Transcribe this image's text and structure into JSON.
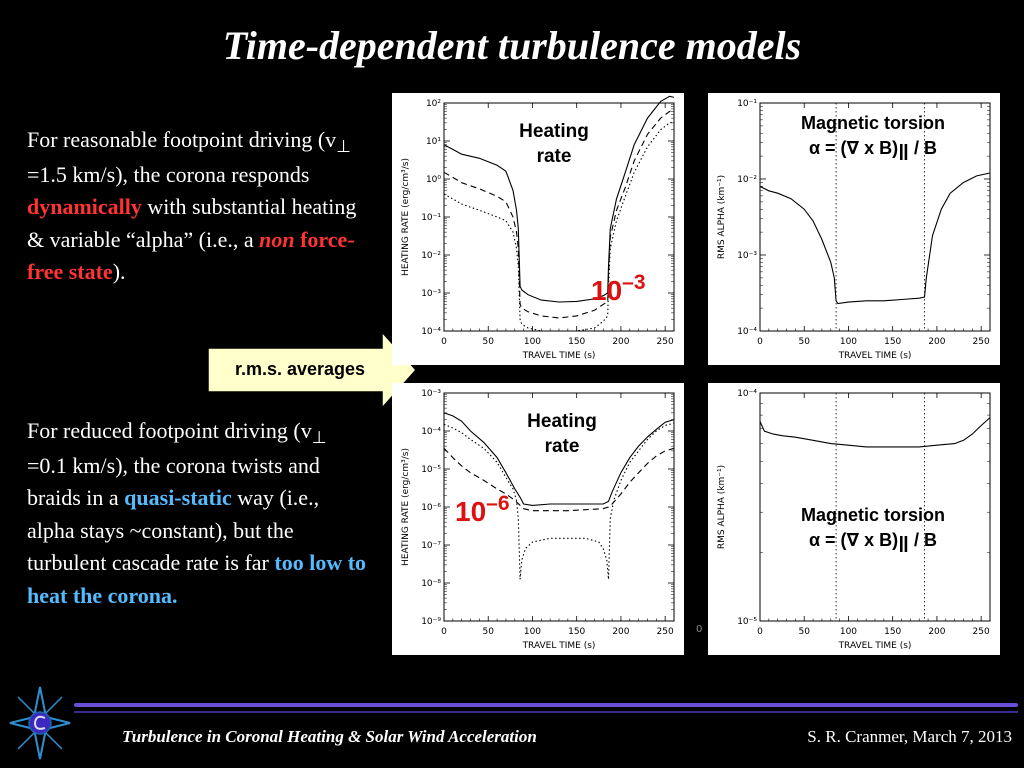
{
  "slide": {
    "title": "Time-dependent turbulence models",
    "callout": "r.m.s. averages",
    "stray_mark": "0"
  },
  "para1": {
    "t1": "For reasonable footpoint driving (v",
    "perp": "⊥",
    "t2": " =1.5 km/s), the corona responds ",
    "hl1": "dynamically",
    "t3": " with substantial heating & variable “alpha” (i.e., a ",
    "hl2_italic": "non",
    "hl2_rest": " force-free state",
    "t4": ")."
  },
  "para2": {
    "t1": "For reduced footpoint driving (v",
    "perp": "⊥",
    "t2": " =0.1 km/s), the corona twists and braids in a ",
    "hl1": "quasi-static",
    "t3": " way (i.e., alpha stays ~constant), but the turbulent cascade rate is far ",
    "hl2": "too low to heat the corona."
  },
  "annotations": {
    "heating_line1": "Heating",
    "heating_line2": "rate",
    "torsion_line1": "Magnetic torsion",
    "torsion_pre": "α = (∇ x B)",
    "torsion_par": "‖",
    "torsion_post": " / B",
    "exp_top_base": "10",
    "exp_top_sup": "–3",
    "exp_bot_base": "10",
    "exp_bot_sup": "–6"
  },
  "footer": {
    "left": "Turbulence in Coronal Heating & Solar Wind Acceleration",
    "right": "S. R. Cranmer, March 7, 2013"
  },
  "colors": {
    "background": "#000000",
    "highlight_red": "#ff3333",
    "highlight_blue": "#55bbff",
    "exponent_red": "#dd1111",
    "callout_fill": "#ffffcc",
    "footer_bar": "#6a4ed8"
  },
  "chart_data": [
    {
      "type": "line",
      "id": "heating-top",
      "ylog": true,
      "xlabel": "TRAVEL TIME (s)",
      "ylabel": "HEATING RATE (erg/cm³/s)",
      "xlim": [
        0,
        260
      ],
      "ylim_exp": [
        -4,
        2
      ],
      "xticks": [
        0,
        50,
        100,
        150,
        200,
        250
      ],
      "yticks_exp": [
        2,
        1,
        0,
        -1,
        -2,
        -3,
        -4
      ],
      "series": [
        {
          "style": "solid",
          "x": [
            0,
            10,
            20,
            40,
            60,
            70,
            78,
            82,
            84,
            86,
            88,
            95,
            110,
            130,
            150,
            170,
            180,
            185,
            186,
            188,
            195,
            205,
            215,
            230,
            245,
            255,
            260
          ],
          "y": [
            8,
            6,
            4.5,
            3.5,
            2.3,
            1.6,
            0.5,
            0.15,
            0.05,
            0.0015,
            0.0012,
            0.0009,
            0.00065,
            0.00058,
            0.0006,
            0.0007,
            0.00085,
            0.001,
            0.005,
            0.05,
            0.3,
            1.5,
            8,
            40,
            110,
            150,
            140
          ]
        },
        {
          "style": "dashed",
          "x": [
            0,
            10,
            20,
            40,
            60,
            70,
            78,
            82,
            84,
            86,
            88,
            95,
            110,
            130,
            150,
            170,
            180,
            185,
            186,
            188,
            195,
            205,
            215,
            230,
            245,
            255,
            260
          ],
          "y": [
            1.5,
            1.1,
            0.8,
            0.55,
            0.35,
            0.25,
            0.1,
            0.04,
            0.015,
            0.0005,
            0.0004,
            0.00032,
            0.00025,
            0.00022,
            0.00025,
            0.00035,
            0.0005,
            0.0006,
            0.003,
            0.03,
            0.15,
            0.6,
            3,
            15,
            40,
            60,
            65
          ]
        },
        {
          "style": "dotted",
          "x": [
            0,
            10,
            20,
            40,
            60,
            70,
            78,
            82,
            84,
            86,
            88,
            95,
            110,
            130,
            150,
            170,
            180,
            185,
            186,
            188,
            195,
            205,
            215,
            230,
            245,
            255,
            260
          ],
          "y": [
            0.4,
            0.3,
            0.22,
            0.15,
            0.1,
            0.08,
            0.04,
            0.015,
            0.005,
            0.0002,
            0.00015,
            0.00012,
            0.0001,
            0.0001,
            0.0001,
            0.00012,
            0.00018,
            0.00025,
            0.0015,
            0.015,
            0.08,
            0.35,
            1.5,
            7,
            20,
            30,
            32
          ]
        }
      ]
    },
    {
      "type": "line",
      "id": "alpha-top",
      "ylog": true,
      "xlabel": "TRAVEL TIME (s)",
      "ylabel": "RMS ALPHA (km⁻¹)",
      "xlim": [
        0,
        260
      ],
      "ylim_exp": [
        -4,
        -1
      ],
      "xticks": [
        0,
        50,
        100,
        150,
        200,
        250
      ],
      "yticks_exp": [
        -1,
        -2,
        -3,
        -4
      ],
      "vlines": [
        86,
        186
      ],
      "series": [
        {
          "style": "solid",
          "x": [
            0,
            10,
            20,
            35,
            50,
            60,
            70,
            80,
            84,
            86,
            88,
            100,
            120,
            140,
            160,
            180,
            186,
            188,
            195,
            205,
            215,
            230,
            245,
            260
          ],
          "y": [
            0.008,
            0.007,
            0.0065,
            0.0055,
            0.004,
            0.0028,
            0.0016,
            0.0008,
            0.0005,
            0.00025,
            0.00023,
            0.00024,
            0.00025,
            0.00025,
            0.00026,
            0.00027,
            0.00028,
            0.0005,
            0.0018,
            0.004,
            0.0065,
            0.009,
            0.011,
            0.012
          ]
        }
      ]
    },
    {
      "type": "line",
      "id": "heating-bottom",
      "ylog": true,
      "xlabel": "TRAVEL TIME (s)",
      "ylabel": "HEATING RATE (erg/cm³/s)",
      "xlim": [
        0,
        260
      ],
      "ylim_exp": [
        -9,
        -3
      ],
      "xticks": [
        0,
        50,
        100,
        150,
        200,
        250
      ],
      "yticks_exp": [
        -3,
        -4,
        -5,
        -6,
        -7,
        -8,
        -9
      ],
      "series": [
        {
          "style": "solid",
          "x": [
            0,
            10,
            20,
            30,
            45,
            60,
            70,
            80,
            86,
            90,
            100,
            120,
            140,
            160,
            180,
            186,
            190,
            200,
            210,
            220,
            230,
            240,
            250,
            260
          ],
          "y": [
            0.0003,
            0.00025,
            0.00018,
            0.0001,
            5e-05,
            2e-05,
            8e-06,
            3e-06,
            1.8e-06,
            1.2e-06,
            1.1e-06,
            1.2e-06,
            1.2e-06,
            1.2e-06,
            1.2e-06,
            1.4e-06,
            2.5e-06,
            8e-06,
            2e-05,
            4e-05,
            7e-05,
            0.00011,
            0.00017,
            0.0002
          ]
        },
        {
          "style": "dashed",
          "x": [
            0,
            10,
            20,
            30,
            45,
            60,
            70,
            80,
            86,
            90,
            100,
            120,
            140,
            160,
            180,
            186,
            190,
            200,
            210,
            220,
            230,
            240,
            250,
            260
          ],
          "y": [
            3.5e-05,
            2e-05,
            1.2e-05,
            8e-06,
            5e-06,
            3e-06,
            2.2e-06,
            1.5e-06,
            1.1e-06,
            9e-07,
            8e-07,
            8e-07,
            8e-07,
            8.5e-07,
            9e-07,
            1e-06,
            1.2e-06,
            2.2e-06,
            4.5e-06,
            8e-06,
            1.4e-05,
            2.2e-05,
            3e-05,
            3.5e-05
          ]
        },
        {
          "style": "dotted",
          "x": [
            0,
            10,
            20,
            30,
            45,
            60,
            70,
            78,
            82,
            84,
            86,
            88,
            92,
            100,
            120,
            140,
            160,
            175,
            180,
            184,
            186,
            188,
            192,
            200,
            210,
            220,
            230,
            240,
            250,
            260
          ],
          "y": [
            0.00015,
            0.00012,
            9e-05,
            6e-05,
            3.5e-05,
            1.5e-05,
            6e-06,
            3e-06,
            1.5e-06,
            5e-07,
            1.25e-08,
            4e-08,
            8e-08,
            1.2e-07,
            1.5e-07,
            1.5e-07,
            1.5e-07,
            1.2e-07,
            8e-08,
            4e-08,
            1.25e-08,
            5e-07,
            1.5e-06,
            5e-06,
            1.5e-05,
            3e-05,
            6e-05,
            0.0001,
            0.00014,
            0.00016
          ]
        }
      ]
    },
    {
      "type": "line",
      "id": "alpha-bottom",
      "ylog": true,
      "xlabel": "TRAVEL TIME (s)",
      "ylabel": "RMS ALPHA (km⁻¹)",
      "xlim": [
        0,
        260
      ],
      "ylim_exp": [
        -5,
        -4
      ],
      "xticks": [
        0,
        50,
        100,
        150,
        200,
        250
      ],
      "yticks_exp": [
        -4,
        -5
      ],
      "vlines": [
        86,
        186
      ],
      "series": [
        {
          "style": "solid",
          "x": [
            0,
            5,
            15,
            25,
            40,
            60,
            80,
            100,
            120,
            140,
            160,
            180,
            200,
            220,
            230,
            240,
            250,
            260
          ],
          "y": [
            7.5e-05,
            6.8e-05,
            6.6e-05,
            6.5e-05,
            6.4e-05,
            6.2e-05,
            6e-05,
            5.9e-05,
            5.8e-05,
            5.8e-05,
            5.8e-05,
            5.8e-05,
            5.9e-05,
            6e-05,
            6.2e-05,
            6.6e-05,
            7.2e-05,
            7.8e-05
          ]
        }
      ]
    }
  ]
}
